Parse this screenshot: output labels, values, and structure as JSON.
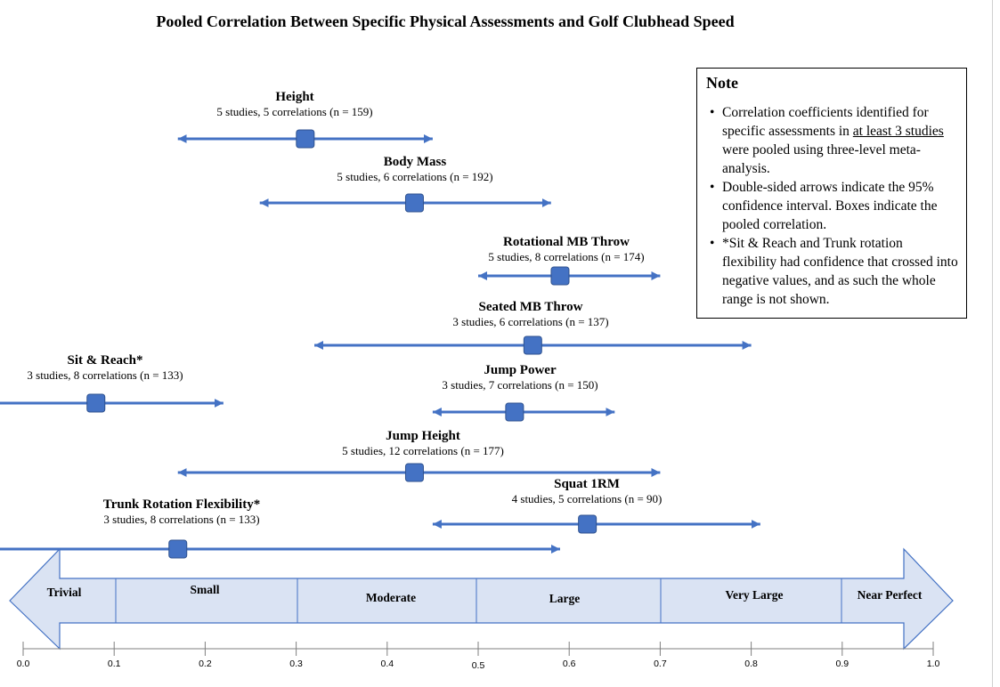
{
  "chart_data": {
    "type": "forest",
    "title": "Pooled Correlation Between Specific Physical Assessments and Golf Clubhead Speed",
    "xlim": [
      0.0,
      1.0
    ],
    "x_ticks": [
      "0.0",
      "0.1",
      "0.2",
      "0.3",
      "0.4",
      "0.5",
      "0.6",
      "0.7",
      "0.8",
      "0.9",
      "1.0"
    ],
    "series": [
      {
        "name": "Height",
        "subtitle": "5 studies, 5 correlations (n = 159)",
        "r": 0.31,
        "ci": [
          0.17,
          0.45
        ],
        "truncated_left": false
      },
      {
        "name": "Body Mass",
        "subtitle": "5 studies, 6 correlations (n = 192)",
        "r": 0.43,
        "ci": [
          0.26,
          0.58
        ],
        "truncated_left": false
      },
      {
        "name": "Rotational MB Throw",
        "subtitle": "5 studies, 8 correlations (n = 174)",
        "r": 0.59,
        "ci": [
          0.5,
          0.7
        ],
        "truncated_left": false
      },
      {
        "name": "Seated MB Throw",
        "subtitle": "3 studies, 6 correlations (n = 137)",
        "r": 0.56,
        "ci": [
          0.32,
          0.8
        ],
        "truncated_left": false
      },
      {
        "name": "Sit & Reach*",
        "subtitle": "3 studies, 8 correlations (n = 133)",
        "r": 0.08,
        "ci": [
          null,
          0.22
        ],
        "truncated_left": true
      },
      {
        "name": "Jump Power",
        "subtitle": "3 studies, 7 correlations (n = 150)",
        "r": 0.54,
        "ci": [
          0.45,
          0.65
        ],
        "truncated_left": false
      },
      {
        "name": "Jump Height",
        "subtitle": "5 studies, 12 correlations (n = 177)",
        "r": 0.43,
        "ci": [
          0.17,
          0.7
        ],
        "truncated_left": false
      },
      {
        "name": "Squat 1RM",
        "subtitle": "4 studies, 5 correlations (n = 90)",
        "r": 0.62,
        "ci": [
          0.45,
          0.81
        ],
        "truncated_left": false
      },
      {
        "name": "Trunk Rotation Flexibility*",
        "subtitle": "3 studies, 8 correlations (n = 133)",
        "r": 0.17,
        "ci": [
          null,
          0.59
        ],
        "truncated_left": true
      }
    ],
    "effect_categories": [
      {
        "label": "Trivial",
        "range": [
          0.0,
          0.1
        ]
      },
      {
        "label": "Small",
        "range": [
          0.1,
          0.3
        ]
      },
      {
        "label": "Moderate",
        "range": [
          0.3,
          0.5
        ]
      },
      {
        "label": "Large",
        "range": [
          0.5,
          0.7
        ]
      },
      {
        "label": "Very Large",
        "range": [
          0.7,
          0.9
        ]
      },
      {
        "label": "Near Perfect",
        "range": [
          0.9,
          1.0
        ]
      }
    ],
    "colors": {
      "series": "#4472c4",
      "marker_stroke": "#2f528f",
      "band_fill": "#dae3f3",
      "band_stroke": "#4472c4",
      "axis": "#7f7f7f"
    }
  },
  "note": {
    "title": "Note",
    "items": [
      {
        "pre": "Correlation coefficients identified for specific assessments in ",
        "underline": "at least 3 studies",
        "post": " were pooled using three-level meta-analysis."
      },
      {
        "pre": "Double-sided arrows indicate the 95% confidence interval. Boxes indicate the pooled correlation.",
        "underline": "",
        "post": ""
      },
      {
        "pre": "*Sit & Reach and Trunk rotation flexibility had confidence that crossed into negative values, and as such the whole range is not shown.",
        "underline": "",
        "post": ""
      }
    ]
  }
}
